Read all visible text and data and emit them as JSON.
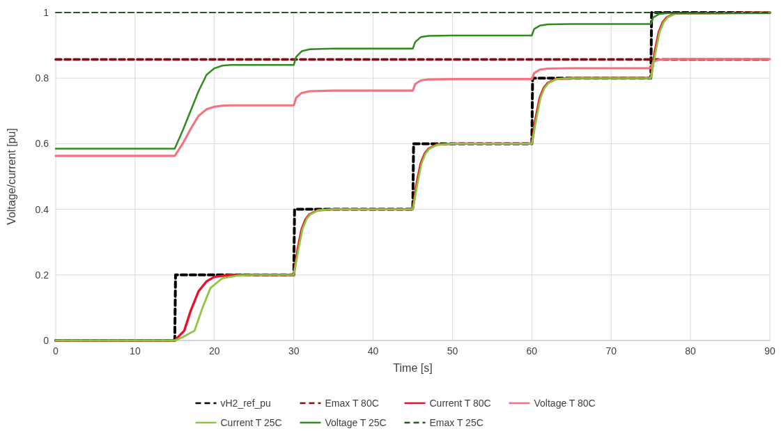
{
  "chart_data": {
    "type": "line",
    "xlabel": "Time [s]",
    "ylabel": "Voltage/current [pu]",
    "xlim": [
      0,
      90
    ],
    "ylim": [
      0,
      1
    ],
    "xticks": [
      0,
      10,
      20,
      30,
      40,
      50,
      60,
      70,
      80,
      90
    ],
    "yticks": [
      0,
      {
        "value": 0.2,
        "label": "0.2"
      },
      {
        "value": 0.4,
        "label": "0.4"
      },
      {
        "value": 0.6,
        "label": "0.6"
      },
      {
        "value": 0.8,
        "label": "0.8"
      },
      1
    ],
    "grid": true,
    "legend": "bottom",
    "series": [
      {
        "name": "vH2_ref_pu",
        "color": "#000000",
        "line_style": "dashed",
        "x": [
          0,
          15,
          15.1,
          30,
          30.1,
          45,
          45.1,
          60,
          60.1,
          75,
          75.1,
          90
        ],
        "values": [
          0,
          0,
          0.2,
          0.2,
          0.4,
          0.4,
          0.6,
          0.6,
          0.8,
          0.8,
          1,
          1
        ]
      },
      {
        "name": "Emax T 80C",
        "color": "#7f0e1b",
        "line_style": "dashed",
        "x": [
          0,
          90
        ],
        "values": [
          0.857,
          0.857
        ]
      },
      {
        "name": "Current T 80C",
        "color": "#e8112d",
        "line_style": "solid",
        "x": [
          0,
          15,
          16.2,
          17,
          18,
          19,
          20,
          22,
          25,
          30,
          30.5,
          31,
          31.5,
          32,
          33,
          35,
          45,
          45.5,
          46,
          46.5,
          47,
          48,
          50,
          60,
          60.5,
          61,
          61.5,
          62,
          63,
          65,
          75,
          75.5,
          76,
          76.5,
          77,
          78,
          90
        ],
        "values": [
          0,
          0,
          0.03,
          0.09,
          0.15,
          0.18,
          0.194,
          0.2,
          0.2,
          0.2,
          0.28,
          0.34,
          0.37,
          0.385,
          0.397,
          0.4,
          0.4,
          0.48,
          0.54,
          0.57,
          0.585,
          0.597,
          0.6,
          0.6,
          0.68,
          0.74,
          0.77,
          0.785,
          0.797,
          0.8,
          0.8,
          0.88,
          0.94,
          0.97,
          0.985,
          0.997,
          1
        ]
      },
      {
        "name": "Voltage T 80C",
        "color": "#f7707f",
        "line_style": "solid",
        "x": [
          0,
          15,
          16,
          17,
          18,
          19,
          20,
          21,
          22,
          25,
          30,
          30.3,
          31,
          32,
          35,
          45,
          45.3,
          46,
          47,
          50,
          60,
          60.3,
          61,
          62,
          65,
          75,
          75.3,
          76,
          77,
          90
        ],
        "values": [
          0.563,
          0.563,
          0.6,
          0.645,
          0.685,
          0.705,
          0.713,
          0.716,
          0.717,
          0.717,
          0.717,
          0.74,
          0.755,
          0.76,
          0.762,
          0.762,
          0.782,
          0.793,
          0.796,
          0.797,
          0.797,
          0.815,
          0.826,
          0.829,
          0.83,
          0.83,
          0.85,
          0.856,
          0.858,
          0.858
        ]
      },
      {
        "name": "Current T 25C",
        "color": "#8cc63f",
        "line_style": "solid",
        "x": [
          0,
          15,
          16,
          17.5,
          18.5,
          19.5,
          21,
          23,
          25,
          30,
          30.6,
          31.1,
          31.6,
          32.1,
          33.1,
          35,
          45,
          45.6,
          46.1,
          46.6,
          47.1,
          48.1,
          50,
          60,
          60.6,
          61.1,
          61.6,
          62.1,
          63.1,
          65,
          75,
          75.6,
          76.1,
          76.6,
          77.1,
          78.1,
          90
        ],
        "values": [
          0,
          0,
          0.01,
          0.03,
          0.1,
          0.16,
          0.19,
          0.198,
          0.2,
          0.2,
          0.28,
          0.34,
          0.37,
          0.385,
          0.397,
          0.4,
          0.4,
          0.48,
          0.54,
          0.57,
          0.585,
          0.597,
          0.6,
          0.6,
          0.68,
          0.74,
          0.77,
          0.785,
          0.797,
          0.8,
          0.8,
          0.88,
          0.94,
          0.97,
          0.985,
          0.997,
          1
        ]
      },
      {
        "name": "Voltage T 25C",
        "color": "#2e8b1e",
        "line_style": "solid",
        "x": [
          0,
          15,
          16,
          17,
          18,
          19,
          20,
          21,
          22,
          25,
          30,
          30.3,
          31,
          32,
          35,
          45,
          45.3,
          46,
          47,
          50,
          60,
          60.3,
          61,
          62,
          65,
          75,
          75.3,
          76,
          77,
          90
        ],
        "values": [
          0.585,
          0.585,
          0.64,
          0.7,
          0.76,
          0.81,
          0.83,
          0.838,
          0.84,
          0.84,
          0.84,
          0.865,
          0.882,
          0.888,
          0.89,
          0.89,
          0.91,
          0.925,
          0.929,
          0.93,
          0.93,
          0.95,
          0.96,
          0.964,
          0.965,
          0.965,
          0.985,
          0.995,
          0.998,
          0.998
        ]
      },
      {
        "name": "Emax T 25C",
        "color": "#1e5c1e",
        "line_style": "dashed",
        "x": [
          0,
          90
        ],
        "values": [
          1,
          1
        ]
      }
    ]
  }
}
